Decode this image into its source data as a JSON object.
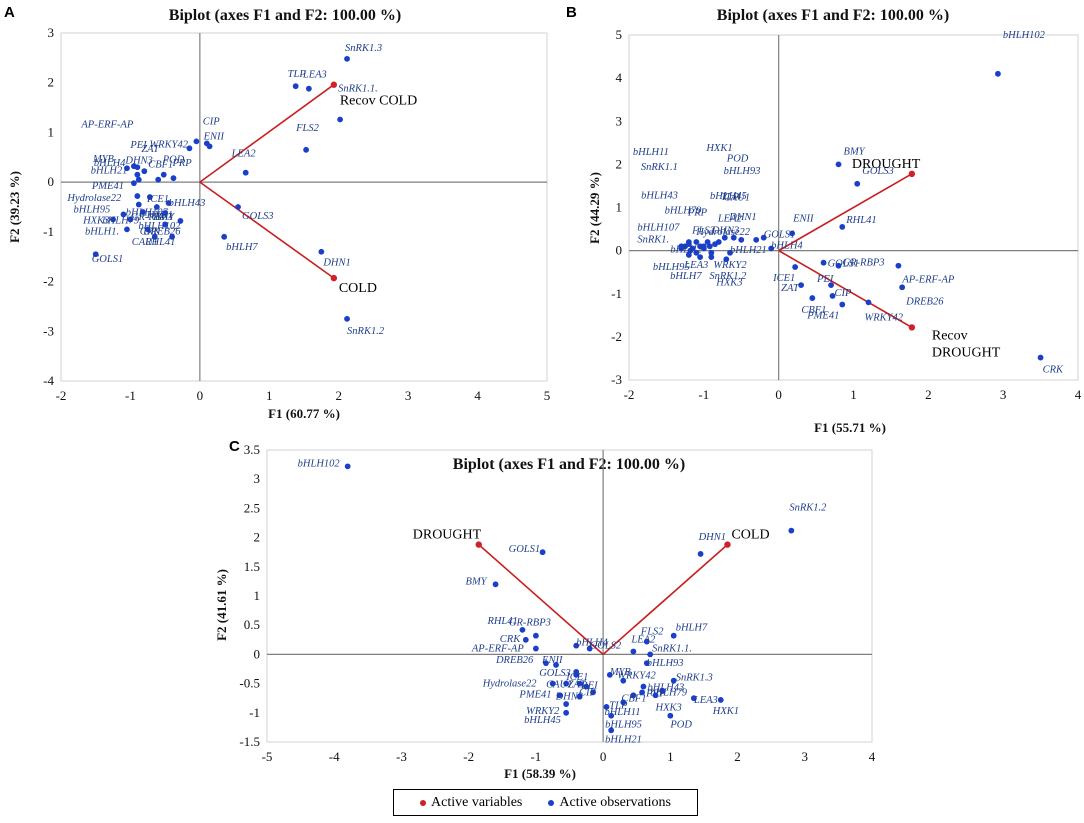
{
  "colors": {
    "variable": "#d0202a",
    "observation": "#1a3fc9",
    "line": "#c91f1f",
    "axis": "#7f7f7f"
  },
  "legend": {
    "variables": "Active variables",
    "observations": "Active observations"
  },
  "chart_data": [
    {
      "panel": "A",
      "type": "scatter",
      "title": "Biplot (axes F1 and F2: 100.00 %)",
      "xlabel": "F1 (60.77 %)",
      "ylabel": "F2 (39.23 %)",
      "xlim": [
        -2,
        5
      ],
      "ylim": [
        -4,
        3
      ],
      "xticks": [
        -2,
        -1,
        0,
        1,
        2,
        3,
        4,
        5
      ],
      "yticks": [
        -4,
        -3,
        -2,
        -1,
        0,
        1,
        2,
        3
      ],
      "variables": [
        {
          "name": "Recov COLD",
          "x": 1.93,
          "y": 1.96,
          "label": [
            "Recov COLD"
          ],
          "dx": 6,
          "dy": 20
        },
        {
          "name": "COLD",
          "x": 1.93,
          "y": -1.93,
          "label": [
            "COLD"
          ],
          "dx": 5,
          "dy": 14
        }
      ],
      "observations": [
        {
          "name": "SnRK1.3",
          "x": 2.12,
          "y": 2.48,
          "dx": -2,
          "dy": -8
        },
        {
          "name": "TLP",
          "x": 1.38,
          "y": 1.93,
          "dx": -8,
          "dy": -9
        },
        {
          "name": "LEA3",
          "x": 1.57,
          "y": 1.88,
          "dx": -6,
          "dy": -11
        },
        {
          "name": "SnRK1.1.",
          "x": 2.02,
          "y": 1.26,
          "dx": -2,
          "dy": -28
        },
        {
          "name": "FLS2",
          "x": 1.53,
          "y": 0.65,
          "dx": -10,
          "dy": -19
        },
        {
          "name": "LEA2",
          "x": 0.66,
          "y": 0.19,
          "dx": -14,
          "dy": -16
        },
        {
          "name": "CIP",
          "x": 0.1,
          "y": 0.78,
          "dx": -4,
          "dy": -19
        },
        {
          "name": "ENII",
          "x": 0.14,
          "y": 0.72,
          "dx": -6,
          "dy": -7
        },
        {
          "name": "AP-ERF-AP",
          "x": -0.05,
          "y": 0.82,
          "dx": -115,
          "dy": -14
        },
        {
          "name": "WRKY42",
          "x": -0.15,
          "y": 0.68,
          "dx": -40,
          "dy": -1
        },
        {
          "name": "bHLH4",
          "x": -0.95,
          "y": 0.32,
          "dx": -40,
          "dy": 0
        },
        {
          "name": "PEI",
          "x": -0.9,
          "y": 0.3,
          "dx": -7,
          "dy": -19
        },
        {
          "name": "ZAT",
          "x": -0.8,
          "y": 0.22,
          "dx": -3,
          "dy": -19
        },
        {
          "name": "POD",
          "x": -0.52,
          "y": 0.15,
          "dx": -1,
          "dy": -12
        },
        {
          "name": "MYB",
          "x": -1.05,
          "y": 0.28,
          "dx": -34,
          "dy": -6
        },
        {
          "name": "DHN3",
          "x": -0.9,
          "y": 0.15,
          "dx": -12,
          "dy": -11
        },
        {
          "name": "bHLH21",
          "x": -0.88,
          "y": 0.05,
          "dx": -48,
          "dy": -6
        },
        {
          "name": "CBF1",
          "x": -0.6,
          "y": 0.05,
          "dx": -10,
          "dy": -12
        },
        {
          "name": "PRP",
          "x": -0.38,
          "y": 0.08,
          "dx": -1,
          "dy": -12
        },
        {
          "name": "PME41",
          "x": -0.95,
          "y": -0.02,
          "dx": -42,
          "dy": 6
        },
        {
          "name": "Hydrolase22",
          "x": -0.9,
          "y": -0.28,
          "dx": -70,
          "dy": 5
        },
        {
          "name": "ICE1",
          "x": -0.72,
          "y": -0.3,
          "dx": -3,
          "dy": 5
        },
        {
          "name": "bHLH43",
          "x": -0.45,
          "y": -0.42,
          "dx": 0,
          "dy": 3
        },
        {
          "name": "bHLH107",
          "x": -0.88,
          "y": -0.45,
          "dx": -13,
          "dy": 11
        },
        {
          "name": "HXK1",
          "x": -0.62,
          "y": -0.5,
          "dx": -10,
          "dy": 11
        },
        {
          "name": "bHLH95",
          "x": -1.1,
          "y": -0.65,
          "dx": -50,
          "dy": -2
        },
        {
          "name": "GR-RBP3",
          "x": -0.82,
          "y": -0.6,
          "dx": -12,
          "dy": 8
        },
        {
          "name": "BMY",
          "x": -0.5,
          "y": -0.62,
          "dx": -12,
          "dy": 7
        },
        {
          "name": "HXK3",
          "x": -1.25,
          "y": -0.75,
          "dx": -30,
          "dy": 4
        },
        {
          "name": "bHLH79",
          "x": -1.0,
          "y": -0.75,
          "dx": -28,
          "dy": 4
        },
        {
          "name": "bHLH102",
          "x": -0.28,
          "y": -0.78,
          "dx": -42,
          "dy": 8
        },
        {
          "name": "DREB26",
          "x": -0.5,
          "y": -0.85,
          "dx": -22,
          "dy": 10
        },
        {
          "name": "bHLH1.",
          "x": -1.05,
          "y": -0.95,
          "dx": -42,
          "dy": 5
        },
        {
          "name": "CRK",
          "x": -0.75,
          "y": -0.95,
          "dx": -8,
          "dy": 5
        },
        {
          "name": "CAU1",
          "x": -0.65,
          "y": -1.1,
          "dx": -23,
          "dy": 8
        },
        {
          "name": "RHL41",
          "x": -0.4,
          "y": -1.1,
          "dx": -27,
          "dy": 8
        },
        {
          "name": "GOLS3",
          "x": 0.55,
          "y": -0.5,
          "dx": 4,
          "dy": 12
        },
        {
          "name": "bHLH7",
          "x": 0.35,
          "y": -1.1,
          "dx": 2,
          "dy": 13
        },
        {
          "name": "GOLS1",
          "x": -1.5,
          "y": -1.45,
          "dx": -4,
          "dy": 8
        },
        {
          "name": "DHN1",
          "x": 1.75,
          "y": -1.4,
          "dx": 2,
          "dy": 14
        },
        {
          "name": "SnRK1.2",
          "x": 2.12,
          "y": -2.75,
          "dx": 0,
          "dy": 15
        }
      ]
    },
    {
      "panel": "B",
      "type": "scatter",
      "title": "Biplot (axes F1 and F2: 100.00 %)",
      "xlabel": "F1 (55.71 %)",
      "ylabel": "F2 (44.29 %)",
      "xlim": [
        -2,
        4
      ],
      "ylim": [
        -3,
        5
      ],
      "xticks": [
        -2,
        -1,
        0,
        1,
        2,
        3,
        4
      ],
      "yticks": [
        -3,
        -2,
        -1,
        0,
        1,
        2,
        3,
        4,
        5
      ],
      "variables": [
        {
          "name": "DROUGHT",
          "x": 1.78,
          "y": 1.78,
          "label": [
            "DROUGHT"
          ],
          "dx": -60,
          "dy": -6
        },
        {
          "name": "Recov DROUGHT",
          "x": 1.78,
          "y": -1.78,
          "label": [
            "Recov",
            "DROUGHT"
          ],
          "dx": 20,
          "dy": 12
        }
      ],
      "observations": [
        {
          "name": "bHLH102",
          "x": 2.93,
          "y": 4.1,
          "dx": 5,
          "dy": -36
        },
        {
          "name": "BMY",
          "x": 0.8,
          "y": 2.0,
          "dx": 5,
          "dy": -10
        },
        {
          "name": "GOLS3",
          "x": 1.05,
          "y": 1.55,
          "dx": 5,
          "dy": -10
        },
        {
          "name": "RHL41",
          "x": 0.85,
          "y": 0.55,
          "dx": 4,
          "dy": -4
        },
        {
          "name": "ENII",
          "x": 0.18,
          "y": 0.4,
          "dx": 1,
          "dy": -12
        },
        {
          "name": "ICE1",
          "x": 0.22,
          "y": -0.38,
          "dx": -22,
          "dy": 14
        },
        {
          "name": "GOLS1",
          "x": 0.6,
          "y": -0.28,
          "dx": 4,
          "dy": 4
        },
        {
          "name": "GR-RBP3",
          "x": 0.8,
          "y": -0.35,
          "dx": 4,
          "dy": 0
        },
        {
          "name": "ZAT",
          "x": 0.3,
          "y": -0.8,
          "dx": -20,
          "dy": 6
        },
        {
          "name": "PEI",
          "x": 0.7,
          "y": -0.8,
          "dx": -14,
          "dy": -3
        },
        {
          "name": "CIP",
          "x": 0.72,
          "y": -1.05,
          "dx": 2,
          "dy": 0
        },
        {
          "name": "CBF1",
          "x": 0.45,
          "y": -1.1,
          "dx": -11,
          "dy": 15
        },
        {
          "name": "PME41",
          "x": 0.85,
          "y": -1.25,
          "dx": -35,
          "dy": 14
        },
        {
          "name": "AP-ERF-AP",
          "x": 1.6,
          "y": -0.35,
          "dx": 4,
          "dy": 17
        },
        {
          "name": "DREB26",
          "x": 1.65,
          "y": -0.85,
          "dx": 4,
          "dy": 17
        },
        {
          "name": "WRKY42",
          "x": 1.2,
          "y": -1.2,
          "dx": -4,
          "dy": 18
        },
        {
          "name": "CRK",
          "x": 3.5,
          "y": -2.48,
          "dx": 2,
          "dy": 15
        },
        {
          "name": "POD",
          "x": -0.72,
          "y": 0.3,
          "dx": 2,
          "dy": -76
        },
        {
          "name": "CAU1",
          "x": -0.6,
          "y": 0.3,
          "dx": -10,
          "dy": -37
        },
        {
          "name": "DHN1",
          "x": -0.5,
          "y": 0.25,
          "dx": -12,
          "dy": -20
        },
        {
          "name": "Hydrolase22",
          "x": -0.3,
          "y": 0.25,
          "dx": -60,
          "dy": -5
        },
        {
          "name": "bHLH93",
          "x": -0.95,
          "y": 0.2,
          "dx": 16,
          "dy": -68
        },
        {
          "name": "TLP",
          "x": -0.8,
          "y": 0.2,
          "dx": 2,
          "dy": -42
        },
        {
          "name": "bHLH45",
          "x": -0.85,
          "y": 0.15,
          "dx": -5,
          "dy": -45
        },
        {
          "name": "LEA2",
          "x": -0.92,
          "y": 0.1,
          "dx": 8,
          "dy": -25
        },
        {
          "name": "DHN3",
          "x": -1.0,
          "y": 0.1,
          "dx": 8,
          "dy": -13
        },
        {
          "name": "FLS2",
          "x": -1.05,
          "y": 0.1,
          "dx": -8,
          "dy": -13
        },
        {
          "name": "bHLH11",
          "x": -1.2,
          "y": 0.2,
          "dx": -56,
          "dy": -87
        },
        {
          "name": "HXK1",
          "x": -1.1,
          "y": 0.2,
          "dx": 10,
          "dy": -91
        },
        {
          "name": "SnRK1.1",
          "x": -1.2,
          "y": 0.15,
          "dx": -48,
          "dy": -74
        },
        {
          "name": "bHLH43",
          "x": -1.25,
          "y": 0.1,
          "dx": -44,
          "dy": -48
        },
        {
          "name": "bHLH79",
          "x": -1.15,
          "y": 0.05,
          "dx": -28,
          "dy": -35
        },
        {
          "name": "PRP",
          "x": -1.0,
          "y": 0.05,
          "dx": -16,
          "dy": -33
        },
        {
          "name": "bHLH107",
          "x": -1.3,
          "y": 0.1,
          "dx": -44,
          "dy": -16
        },
        {
          "name": "SnRK1.",
          "x": -1.3,
          "y": 0.05,
          "dx": -44,
          "dy": -6
        },
        {
          "name": "bHLH2",
          "x": -1.18,
          "y": 0.0,
          "dx": -20,
          "dy": 2
        },
        {
          "name": "LEA3",
          "x": -1.1,
          "y": -0.05,
          "dx": -12,
          "dy": 15
        },
        {
          "name": "WRKY2",
          "x": -0.9,
          "y": -0.05,
          "dx": 2,
          "dy": 15
        },
        {
          "name": "bHLH95",
          "x": -1.2,
          "y": -0.1,
          "dx": -36,
          "dy": 15
        },
        {
          "name": "bHLH7",
          "x": -1.05,
          "y": -0.15,
          "dx": -30,
          "dy": 22
        },
        {
          "name": "SnRK1.2",
          "x": -0.9,
          "y": -0.15,
          "dx": -2,
          "dy": 22
        },
        {
          "name": "HXK3",
          "x": -0.7,
          "y": -0.2,
          "dx": -10,
          "dy": 26
        },
        {
          "name": "bHLH21",
          "x": -0.65,
          "y": -0.05,
          "dx": 0,
          "dy": 0
        },
        {
          "name": "GOLS1",
          "x": -0.2,
          "y": 0.3,
          "dx": 0,
          "dy": 0
        },
        {
          "name": "bHLH4",
          "x": -0.1,
          "y": 0.05,
          "dx": 0,
          "dy": 0
        }
      ]
    },
    {
      "panel": "C",
      "type": "scatter",
      "title": "Biplot (axes F1 and F2: 100.00 %)",
      "xlabel": "F1 (58.39 %)",
      "ylabel": "F2 (41.61 %)",
      "xlim": [
        -5,
        4
      ],
      "ylim": [
        -1.5,
        3.5
      ],
      "xticks": [
        -5,
        -4,
        -3,
        -2,
        -1,
        0,
        1,
        2,
        3,
        4
      ],
      "yticks": [
        -1.5,
        -1,
        -0.5,
        0,
        0.5,
        1,
        1.5,
        2,
        2.5,
        3,
        3.5
      ],
      "variables": [
        {
          "name": "DROUGHT",
          "x": -1.85,
          "y": 1.88,
          "label": [
            "DROUGHT"
          ],
          "dx": -66,
          "dy": -6
        },
        {
          "name": "COLD",
          "x": 1.85,
          "y": 1.88,
          "label": [
            "COLD"
          ],
          "dx": 4,
          "dy": -6
        }
      ],
      "observations": [
        {
          "name": "bHLH102",
          "x": -3.8,
          "y": 3.22,
          "dx": -50,
          "dy": 0
        },
        {
          "name": "SnRK1.2",
          "x": 2.8,
          "y": 2.12,
          "dx": -2,
          "dy": -20
        },
        {
          "name": "DHN1",
          "x": 1.45,
          "y": 1.72,
          "dx": -2,
          "dy": -14
        },
        {
          "name": "GOLS1",
          "x": -0.9,
          "y": 1.75,
          "dx": -34,
          "dy": 0
        },
        {
          "name": "BMY",
          "x": -1.6,
          "y": 1.2,
          "dx": -30,
          "dy": 0
        },
        {
          "name": "RHL41",
          "x": -1.2,
          "y": 0.42,
          "dx": -35,
          "dy": -6
        },
        {
          "name": "GR-RBP3",
          "x": -1.0,
          "y": 0.32,
          "dx": -27,
          "dy": -10
        },
        {
          "name": "CRK",
          "x": -1.15,
          "y": 0.25,
          "dx": -26,
          "dy": 2
        },
        {
          "name": "AP-ERF-AP",
          "x": -1.0,
          "y": 0.1,
          "dx": -64,
          "dy": 3
        },
        {
          "name": "FLS2",
          "x": 0.65,
          "y": 0.22,
          "dx": -6,
          "dy": -7
        },
        {
          "name": "bHLH7",
          "x": 1.05,
          "y": 0.32,
          "dx": 2,
          "dy": -5
        },
        {
          "name": "LEA2",
          "x": 0.45,
          "y": 0.05,
          "dx": -2,
          "dy": -9
        },
        {
          "name": "SnRK1.1.",
          "x": 0.7,
          "y": 0.0,
          "dx": 2,
          "dy": -3
        },
        {
          "name": "DREB26",
          "x": -0.85,
          "y": -0.15,
          "dx": -50,
          "dy": 0
        },
        {
          "name": "ENII",
          "x": -0.7,
          "y": -0.18,
          "dx": -14,
          "dy": -2
        },
        {
          "name": "GOLS3",
          "x": -0.4,
          "y": -0.3,
          "dx": -37,
          "dy": 4
        },
        {
          "name": "ICE1",
          "x": -0.4,
          "y": -0.35,
          "dx": -10,
          "dy": 5
        },
        {
          "name": "bHLH93",
          "x": 0.65,
          "y": -0.15,
          "dx": 0,
          "dy": 3
        },
        {
          "name": "WRKY42",
          "x": 0.3,
          "y": -0.45,
          "dx": -6,
          "dy": -2
        },
        {
          "name": "bHLH43",
          "x": 0.6,
          "y": -0.55,
          "dx": 4,
          "dy": 4
        },
        {
          "name": "SnRK1.3",
          "x": 1.05,
          "y": -0.45,
          "dx": 2,
          "dy": 0
        },
        {
          "name": "PRP",
          "x": 0.58,
          "y": -0.65,
          "dx": 4,
          "dy": 4
        },
        {
          "name": "bHLH79",
          "x": 0.88,
          "y": -0.62,
          "dx": -12,
          "dy": 5
        },
        {
          "name": "LEA3",
          "x": 1.35,
          "y": -0.75,
          "dx": 0,
          "dy": 5
        },
        {
          "name": "Hydrolase22",
          "x": -0.75,
          "y": -0.5,
          "dx": -70,
          "dy": 3
        },
        {
          "name": "CAU1",
          "x": -0.55,
          "y": -0.5,
          "dx": -20,
          "dy": 4
        },
        {
          "name": "ZAT",
          "x": -0.35,
          "y": -0.5,
          "dx": -12,
          "dy": 4
        },
        {
          "name": "PEI",
          "x": -0.25,
          "y": -0.55,
          "dx": -5,
          "dy": 2
        },
        {
          "name": "CBF1",
          "x": 0.45,
          "y": -0.7,
          "dx": -12,
          "dy": 6
        },
        {
          "name": "PME41",
          "x": -0.65,
          "y": -0.7,
          "dx": -40,
          "dy": 2
        },
        {
          "name": "DHN3",
          "x": -0.35,
          "y": -0.72,
          "dx": -24,
          "dy": 3
        },
        {
          "name": "CIP",
          "x": -0.15,
          "y": -0.65,
          "dx": -14,
          "dy": 3
        },
        {
          "name": "TLP",
          "x": 0.3,
          "y": -0.82,
          "dx": -14,
          "dy": 6
        },
        {
          "name": "HXK3",
          "x": 0.78,
          "y": -0.7,
          "dx": 0,
          "dy": 15
        },
        {
          "name": "HXK1",
          "x": 1.75,
          "y": -0.78,
          "dx": -8,
          "dy": 14
        },
        {
          "name": "WRKY2",
          "x": -0.55,
          "y": -0.85,
          "dx": -40,
          "dy": 10
        },
        {
          "name": "bHLH11",
          "x": 0.05,
          "y": -0.9,
          "dx": -2,
          "dy": 8
        },
        {
          "name": "bHLH45",
          "x": -0.55,
          "y": -1.0,
          "dx": -42,
          "dy": 10
        },
        {
          "name": "bHLH95",
          "x": 0.12,
          "y": -1.05,
          "dx": -6,
          "dy": 12
        },
        {
          "name": "POD",
          "x": 1.0,
          "y": -1.05,
          "dx": 0,
          "dy": 12
        },
        {
          "name": "bHLH21",
          "x": 0.12,
          "y": -1.3,
          "dx": -6,
          "dy": 12
        },
        {
          "name": "bHLH4",
          "x": -0.4,
          "y": 0.15,
          "dx": 0,
          "dy": 0
        },
        {
          "name": "MYB",
          "x": 0.1,
          "y": -0.35,
          "dx": 0,
          "dy": 0
        },
        {
          "name": "GOLS2",
          "x": -0.2,
          "y": 0.1,
          "dx": 0,
          "dy": 0
        }
      ]
    }
  ]
}
